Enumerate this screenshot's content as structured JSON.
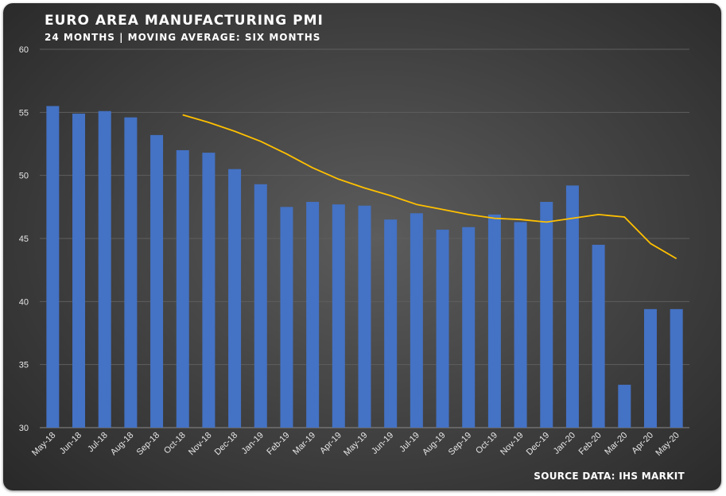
{
  "chart_data": {
    "type": "bar",
    "title": "EURO AREA MANUFACTURING PMI",
    "subtitle": "24 MONTHS | MOVING AVERAGE: SIX MONTHS",
    "source": "SOURCE DATA: IHS MARKIT",
    "categories": [
      "May-18",
      "Jun-18",
      "Jul-18",
      "Aug-18",
      "Sep-18",
      "Oct-18",
      "Nov-18",
      "Dec-18",
      "Jan-19",
      "Feb-19",
      "Mar-19",
      "Apr-19",
      "May-19",
      "Jun-19",
      "Jul-19",
      "Aug-19",
      "Sep-19",
      "Oct-19",
      "Nov-19",
      "Dec-19",
      "Jan-20",
      "Feb-20",
      "Mar-20",
      "Apr-20",
      "May-20"
    ],
    "series": [
      {
        "type": "bar",
        "values": [
          55.5,
          54.9,
          55.1,
          54.6,
          53.2,
          52.0,
          51.8,
          50.5,
          49.3,
          47.5,
          47.9,
          47.7,
          47.6,
          46.5,
          47.0,
          45.7,
          45.9,
          46.9,
          46.3,
          47.9,
          49.2,
          44.5,
          33.4,
          39.4,
          39.4
        ],
        "color": "#4472c4"
      },
      {
        "type": "line",
        "values": [
          null,
          null,
          null,
          null,
          null,
          54.8,
          54.2,
          53.5,
          52.7,
          51.7,
          50.6,
          49.7,
          49.0,
          48.4,
          47.7,
          47.3,
          46.9,
          46.6,
          46.5,
          46.3,
          46.6,
          46.9,
          46.7,
          44.6,
          43.4
        ],
        "color": "#ffc000"
      }
    ],
    "ylim": [
      30,
      60
    ],
    "yticks": [
      "30",
      "35",
      "40",
      "45",
      "50",
      "55",
      "60"
    ],
    "grid": true
  }
}
